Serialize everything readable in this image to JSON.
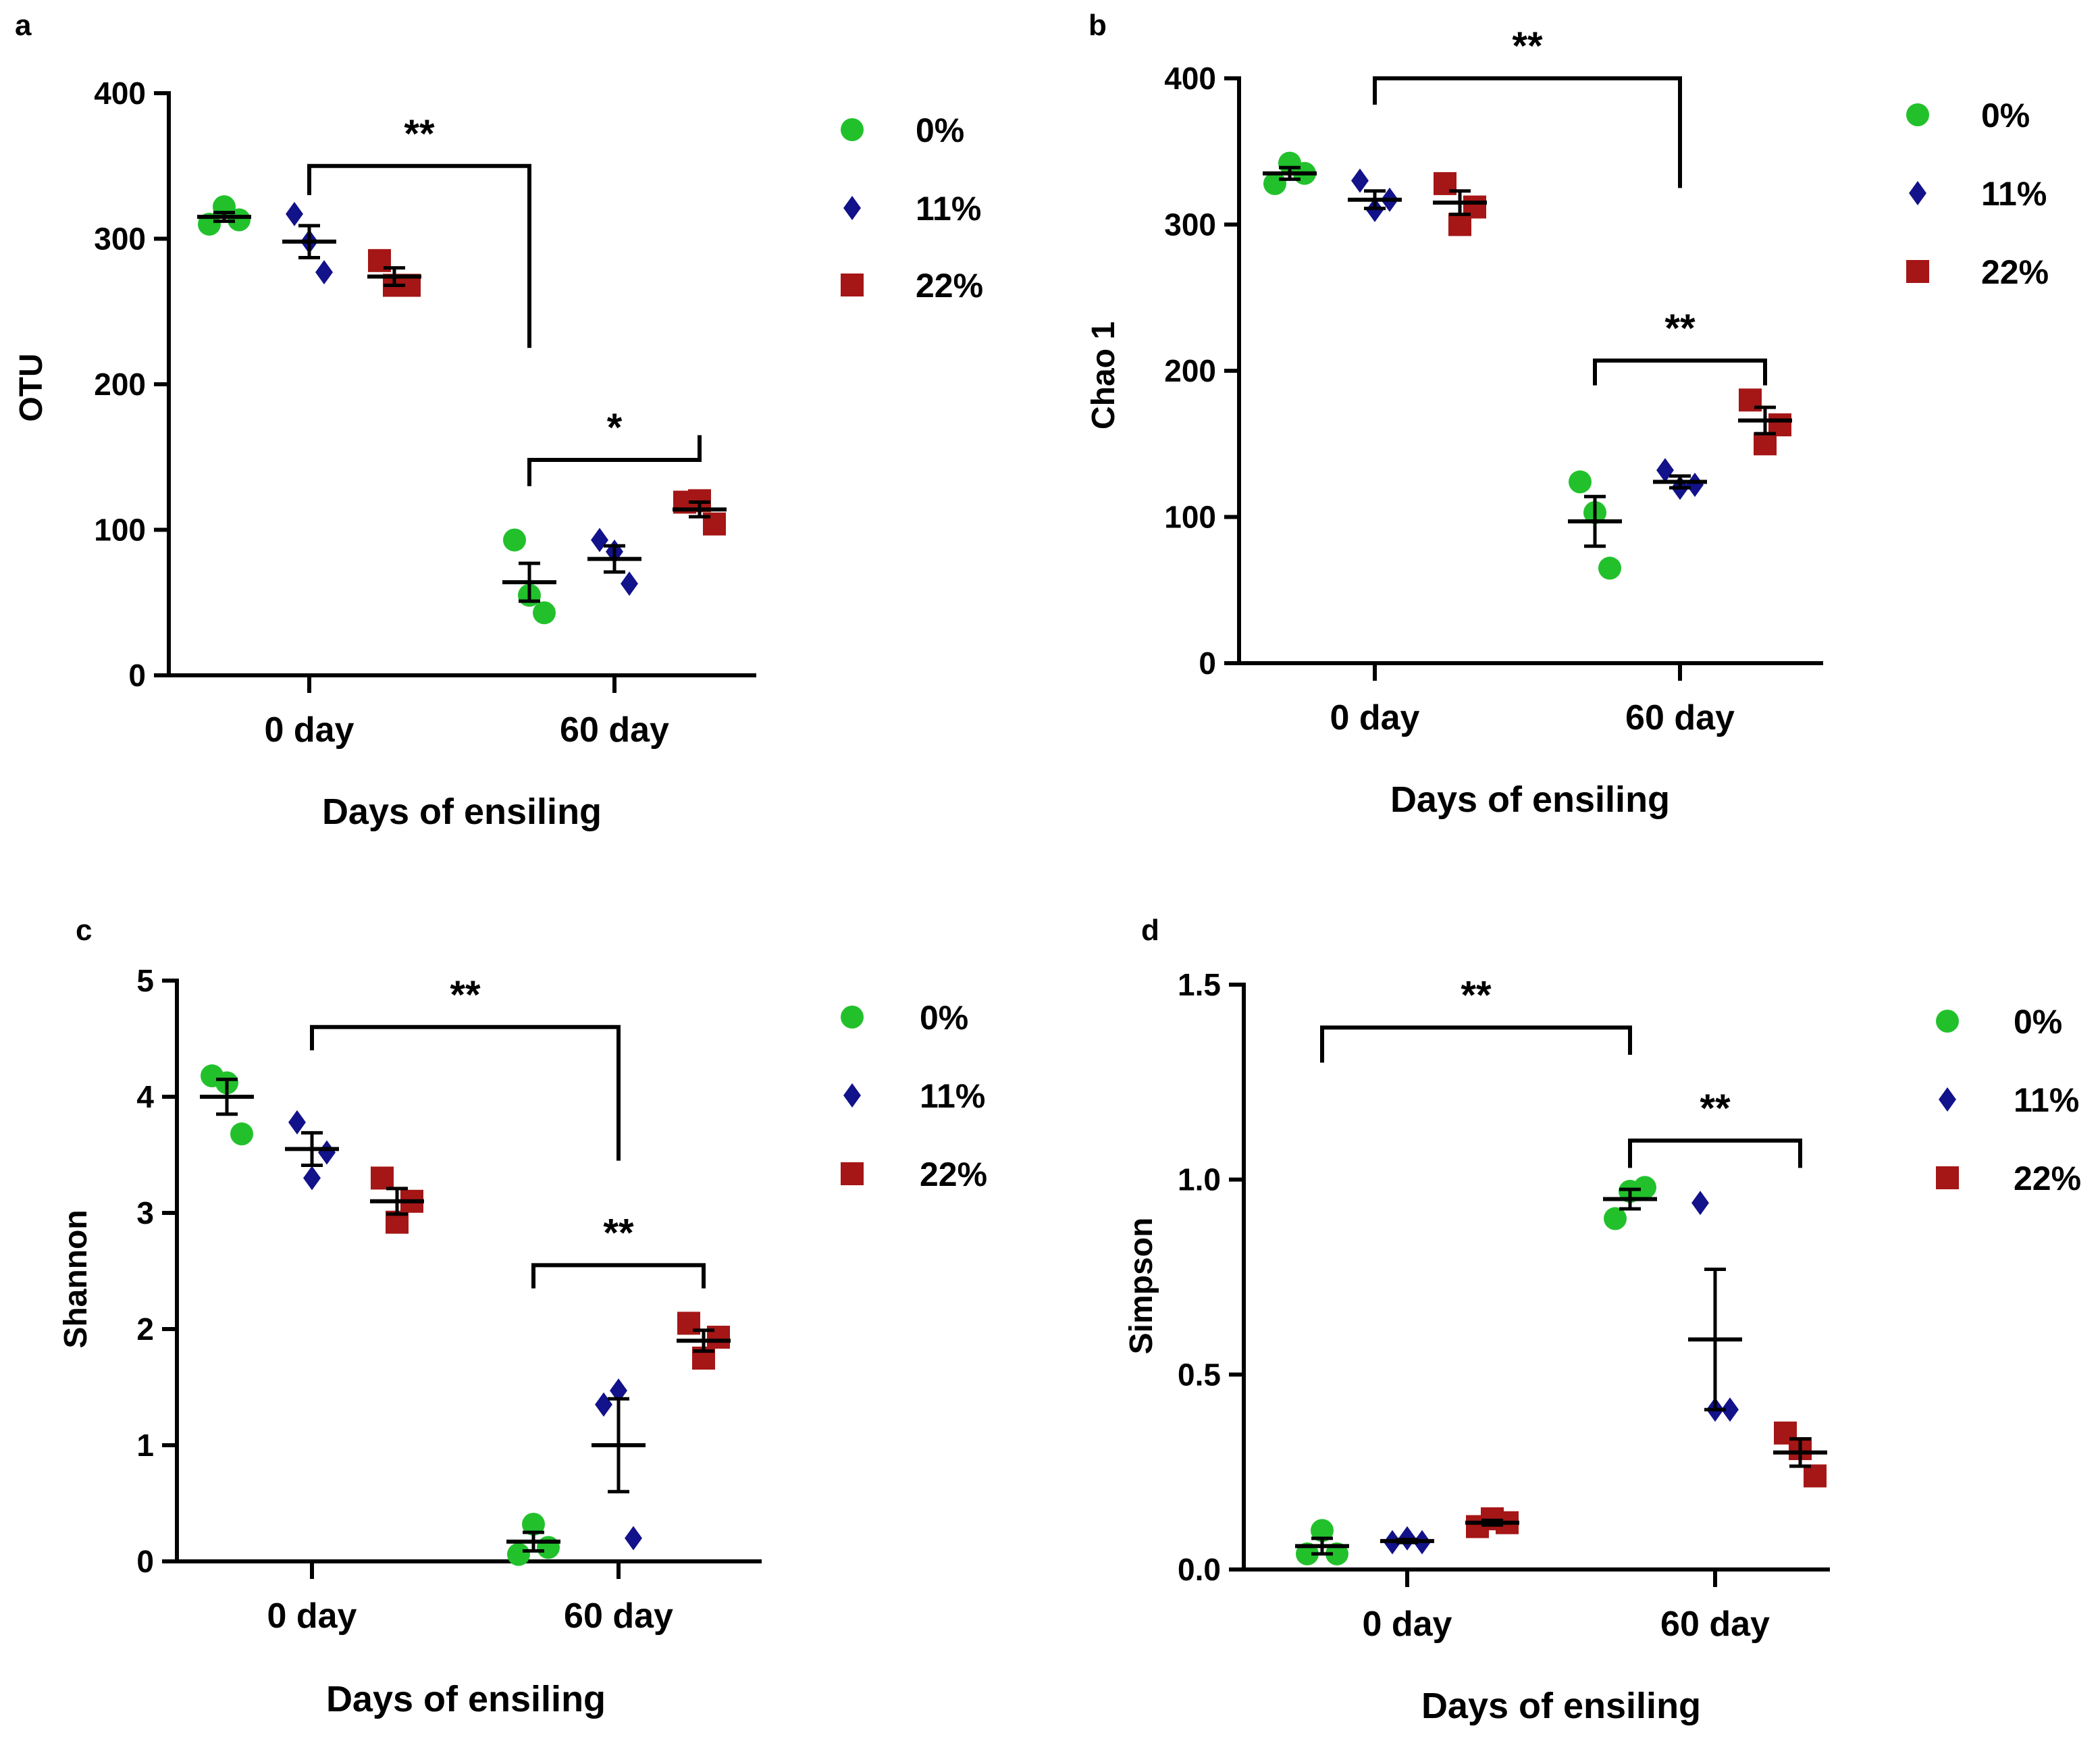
{
  "colors": {
    "axis": "#000000",
    "series_0": "#22c12c",
    "series_11": "#12128a",
    "series_22": "#a51616"
  },
  "legend": {
    "items": [
      {
        "label": "0%",
        "shape": "circle",
        "color": "#22c12c"
      },
      {
        "label": "11%",
        "shape": "diamond",
        "color": "#12128a"
      },
      {
        "label": "22%",
        "shape": "square",
        "color": "#a51616"
      }
    ]
  },
  "chart_data": [
    {
      "panel": "a",
      "type": "scatter",
      "xlabel": "Days of ensiling",
      "ylabel": "OTU",
      "categories": [
        "0 day",
        "60 day"
      ],
      "ylim": [
        0,
        400
      ],
      "yticks": [
        0,
        100,
        200,
        300,
        400
      ],
      "ytick_labels": [
        "0",
        "100",
        "200",
        "300",
        "400"
      ],
      "series": [
        {
          "name": "0%",
          "values": [
            [
              310,
              322,
              313
            ],
            [
              93,
              55,
              43
            ]
          ],
          "mean": [
            315,
            64
          ],
          "sem": [
            3,
            13
          ]
        },
        {
          "name": "11%",
          "values": [
            [
              317,
              298,
              277
            ],
            [
              93,
              85,
              63
            ]
          ],
          "mean": [
            298,
            80
          ],
          "sem": [
            11,
            9
          ]
        },
        {
          "name": "22%",
          "values": [
            [
              285,
              268,
              268
            ],
            [
              119,
              120,
              104
            ]
          ],
          "mean": [
            274,
            114
          ],
          "sem": [
            6,
            5
          ]
        }
      ],
      "brackets": [
        {
          "label": "**",
          "from": [
            0,
            1
          ],
          "to": [
            1,
            0
          ],
          "y": 350,
          "left_drop": 330,
          "right_drop": 225
        },
        {
          "label": "*",
          "from": [
            1,
            0
          ],
          "to": [
            1,
            2
          ],
          "y": 148,
          "left_drop": 130,
          "right_drop": 165
        }
      ]
    },
    {
      "panel": "b",
      "type": "scatter",
      "xlabel": "Days of ensiling",
      "ylabel": "Chao 1",
      "categories": [
        "0 day",
        "60 day"
      ],
      "ylim": [
        0,
        400
      ],
      "yticks": [
        0,
        100,
        200,
        300,
        400
      ],
      "ytick_labels": [
        "0",
        "100",
        "200",
        "300",
        "400"
      ],
      "series": [
        {
          "name": "0%",
          "values": [
            [
              328,
              342,
              335
            ],
            [
              124,
              103,
              65
            ]
          ],
          "mean": [
            335,
            97
          ],
          "sem": [
            4,
            17
          ]
        },
        {
          "name": "11%",
          "values": [
            [
              330,
              310,
              317
            ],
            [
              132,
              120,
              122
            ]
          ],
          "mean": [
            317,
            124
          ],
          "sem": [
            6,
            4
          ]
        },
        {
          "name": "22%",
          "values": [
            [
              328,
              300,
              312
            ],
            [
              180,
              150,
              163
            ]
          ],
          "mean": [
            315,
            166
          ],
          "sem": [
            8,
            9
          ]
        }
      ],
      "brackets": [
        {
          "label": "**",
          "from": [
            0,
            1
          ],
          "to": [
            1,
            1
          ],
          "y": 400,
          "left_drop": 382,
          "right_drop": 325
        },
        {
          "label": "**",
          "from": [
            1,
            0
          ],
          "to": [
            1,
            2
          ],
          "y": 207,
          "left_drop": 190,
          "right_drop": 190
        }
      ]
    },
    {
      "panel": "c",
      "type": "scatter",
      "xlabel": "Days of ensiling",
      "ylabel": "Shannon",
      "categories": [
        "0 day",
        "60 day"
      ],
      "ylim": [
        0,
        5
      ],
      "yticks": [
        0,
        1,
        2,
        3,
        4,
        5
      ],
      "ytick_labels": [
        "0",
        "1",
        "2",
        "3",
        "4",
        "5"
      ],
      "series": [
        {
          "name": "0%",
          "values": [
            [
              4.18,
              4.12,
              3.68
            ],
            [
              0.06,
              0.32,
              0.12
            ]
          ],
          "mean": [
            4.0,
            0.17
          ],
          "sem": [
            0.15,
            0.08
          ]
        },
        {
          "name": "11%",
          "values": [
            [
              3.78,
              3.3,
              3.52
            ],
            [
              1.35,
              1.47,
              0.2
            ]
          ],
          "mean": [
            3.55,
            1.0
          ],
          "sem": [
            0.14,
            0.4
          ]
        },
        {
          "name": "22%",
          "values": [
            [
              3.3,
              2.92,
              3.1
            ],
            [
              2.05,
              1.75,
              1.93
            ]
          ],
          "mean": [
            3.1,
            1.9
          ],
          "sem": [
            0.11,
            0.09
          ]
        }
      ],
      "brackets": [
        {
          "label": "**",
          "from": [
            0,
            1
          ],
          "to": [
            1,
            1
          ],
          "y": 4.6,
          "left_drop": 4.4,
          "right_drop": 3.45
        },
        {
          "label": "**",
          "from": [
            1,
            0
          ],
          "to": [
            1,
            2
          ],
          "y": 2.55,
          "left_drop": 2.35,
          "right_drop": 2.35
        }
      ]
    },
    {
      "panel": "d",
      "type": "scatter",
      "xlabel": "Days of ensiling",
      "ylabel": "Simpson",
      "categories": [
        "0 day",
        "60 day"
      ],
      "ylim": [
        0,
        1.5
      ],
      "yticks": [
        0,
        0.5,
        1.0,
        1.5
      ],
      "ytick_labels": [
        "0.0",
        "0.5",
        "1.0",
        "1.5"
      ],
      "series": [
        {
          "name": "0%",
          "values": [
            [
              0.04,
              0.1,
              0.04
            ],
            [
              0.9,
              0.97,
              0.98
            ]
          ],
          "mean": [
            0.06,
            0.95
          ],
          "sem": [
            0.02,
            0.025
          ]
        },
        {
          "name": "11%",
          "values": [
            [
              0.07,
              0.08,
              0.07
            ],
            [
              0.94,
              0.41,
              0.41
            ]
          ],
          "mean": [
            0.073,
            0.59
          ],
          "sem": [
            0.004,
            0.18
          ]
        },
        {
          "name": "22%",
          "values": [
            [
              0.11,
              0.13,
              0.12
            ],
            [
              0.35,
              0.31,
              0.24
            ]
          ],
          "mean": [
            0.12,
            0.3
          ],
          "sem": [
            0.006,
            0.035
          ]
        }
      ],
      "brackets": [
        {
          "label": "**",
          "from": [
            0,
            0
          ],
          "to": [
            1,
            0
          ],
          "y": 1.39,
          "left_drop": 1.3,
          "right_drop": 1.32
        },
        {
          "label": "**",
          "from": [
            1,
            0
          ],
          "to": [
            1,
            2
          ],
          "y": 1.1,
          "left_drop": 1.03,
          "right_drop": 1.03
        }
      ]
    }
  ]
}
